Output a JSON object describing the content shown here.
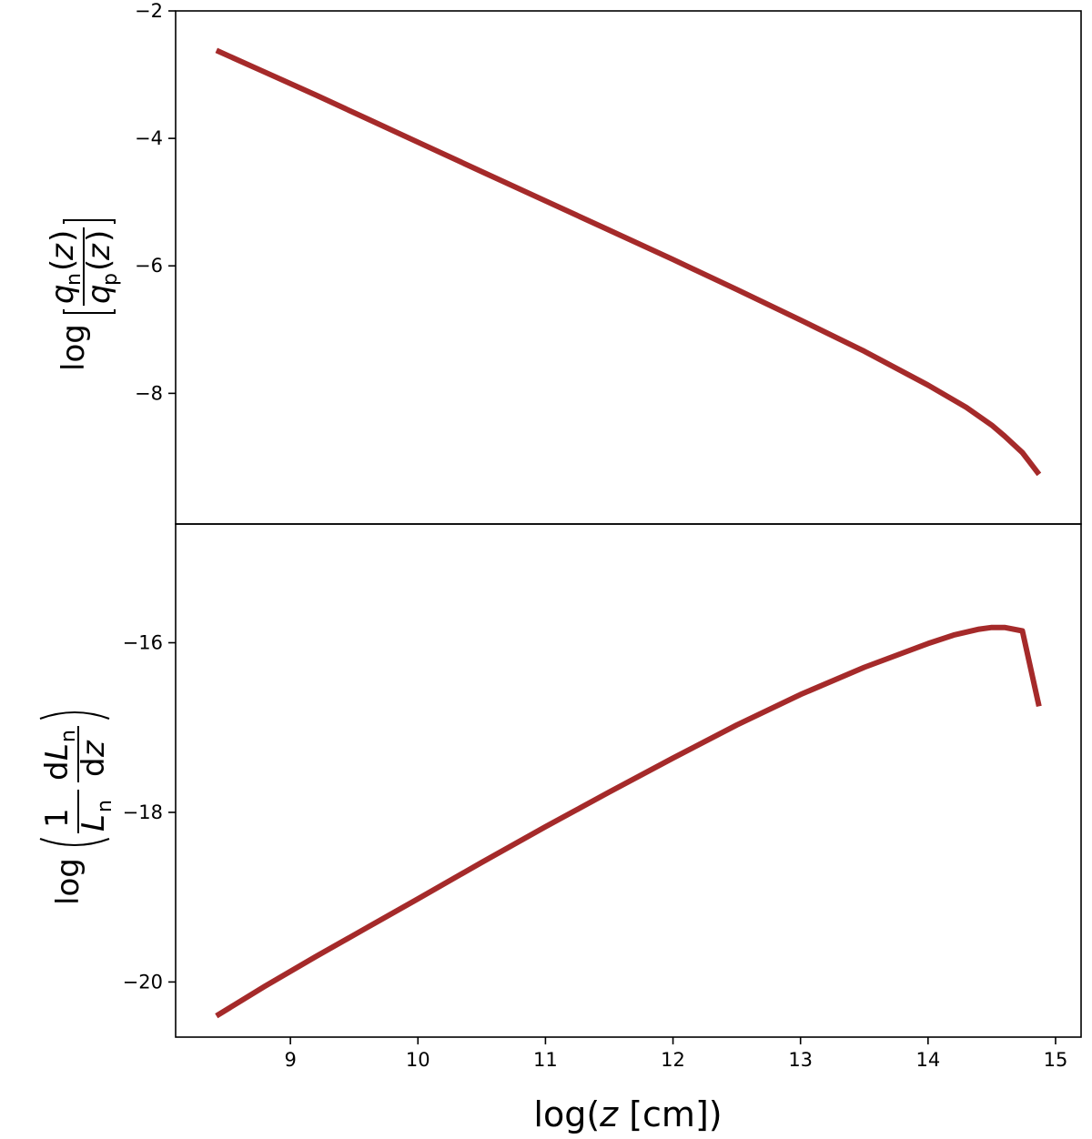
{
  "colors": {
    "line": "#a52a2a",
    "axes": "#000000"
  },
  "chart_data": [
    {
      "type": "line",
      "panel": "top",
      "ylabel": {
        "log": "log",
        "num_var": "q",
        "num_sub": "n",
        "den_var": "q",
        "den_sub": "p",
        "arg_open": "(",
        "arg_var": "z",
        "arg_close": ")"
      },
      "xlim": [
        8.1,
        15.2
      ],
      "ylim": [
        -10.05,
        -2.0
      ],
      "yticks": [
        -2,
        -4,
        -6,
        -8
      ],
      "ytick_labels": [
        "−2",
        "−4",
        "−6",
        "−8"
      ],
      "x": [
        8.42,
        8.8,
        9.2,
        9.6,
        10.0,
        10.5,
        11.0,
        11.5,
        12.0,
        12.5,
        13.0,
        13.5,
        14.0,
        14.3,
        14.5,
        14.6,
        14.74,
        14.87
      ],
      "y": [
        -2.62,
        -2.96,
        -3.32,
        -3.69,
        -4.06,
        -4.52,
        -4.98,
        -5.44,
        -5.9,
        -6.37,
        -6.85,
        -7.34,
        -7.87,
        -8.22,
        -8.5,
        -8.67,
        -8.93,
        -9.27
      ]
    },
    {
      "type": "line",
      "panel": "bottom",
      "ylabel": {
        "log": "log",
        "one": "1",
        "L": "L",
        "L_sub": "n",
        "d_num": "d",
        "dL": "L",
        "dL_sub": "n",
        "d_den": "d",
        "dz": "z"
      },
      "xlabel": {
        "pre": "log(",
        "var": "z",
        "post": " [cm])"
      },
      "xlim": [
        8.1,
        15.2
      ],
      "ylim": [
        -20.65,
        -14.6
      ],
      "xticks": [
        9,
        10,
        11,
        12,
        13,
        14,
        15
      ],
      "xtick_labels": [
        "9",
        "10",
        "11",
        "12",
        "13",
        "14",
        "15"
      ],
      "yticks": [
        -16,
        -18,
        -20
      ],
      "ytick_labels": [
        "−16",
        "−18",
        "−20"
      ],
      "x": [
        8.42,
        8.8,
        9.2,
        9.6,
        10.0,
        10.5,
        11.0,
        11.5,
        12.0,
        12.5,
        13.0,
        13.5,
        14.0,
        14.2,
        14.4,
        14.5,
        14.6,
        14.74,
        14.87
      ],
      "y": [
        -20.4,
        -20.05,
        -19.7,
        -19.36,
        -19.02,
        -18.59,
        -18.17,
        -17.76,
        -17.36,
        -16.97,
        -16.61,
        -16.29,
        -16.01,
        -15.91,
        -15.84,
        -15.82,
        -15.82,
        -15.86,
        -16.75
      ]
    }
  ]
}
